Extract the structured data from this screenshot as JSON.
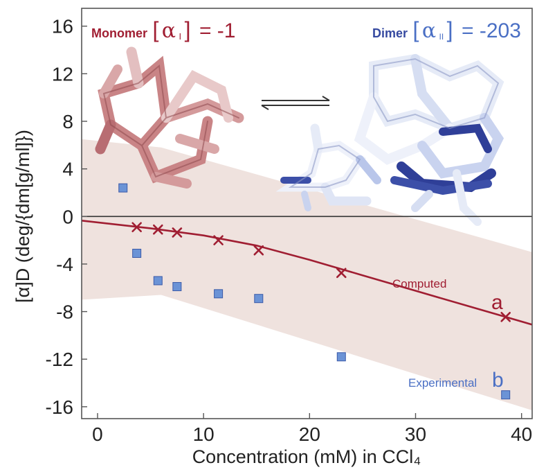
{
  "chart_data": {
    "type": "line",
    "xlabel": "Concentration (mM) in CCl₄",
    "ylabel": "[α]D (deg/{dm[g/ml]})",
    "xlim": [
      -1.5,
      41
    ],
    "ylim": [
      -17,
      17.5
    ],
    "xticks": [
      0,
      10,
      20,
      30,
      40
    ],
    "yticks": [
      16,
      12,
      8,
      4,
      0,
      -4,
      -8,
      -12,
      -16
    ],
    "xtick_labels": [
      "0",
      "10",
      "20",
      "30",
      "40"
    ],
    "ytick_labels": [
      "16",
      "12",
      "8",
      "4",
      "0",
      "-4",
      "-8",
      "-12",
      "-16"
    ],
    "grid": false,
    "zero_line": true,
    "band": {
      "x": [
        -1.5,
        6,
        41
      ],
      "upper": [
        6.5,
        5.8,
        -3.0
      ],
      "lower": [
        -7.0,
        -6.6,
        -16.3
      ],
      "color": "#efe2de"
    },
    "series": [
      {
        "name": "Computed",
        "label": "a",
        "color": "#a01e32",
        "marker": "x",
        "fit_x": [
          -1.5,
          5,
          10,
          15,
          20,
          25,
          30,
          35,
          38.5,
          41
        ],
        "fit_y": [
          -0.35,
          -1.0,
          -1.6,
          -2.45,
          -3.65,
          -4.95,
          -6.25,
          -7.55,
          -8.45,
          -9.1
        ],
        "x": [
          3.7,
          5.7,
          7.5,
          11.4,
          15.2,
          23.0,
          38.5
        ],
        "y": [
          -0.9,
          -1.1,
          -1.35,
          -2.0,
          -2.85,
          -4.75,
          -8.45
        ]
      },
      {
        "name": "Experimental",
        "label": "b",
        "color": "#6b93d6",
        "marker": "square",
        "x": [
          2.4,
          3.7,
          5.7,
          7.5,
          11.4,
          15.2,
          23.0,
          38.5
        ],
        "y": [
          2.4,
          -3.1,
          -5.4,
          -5.9,
          -6.5,
          -6.9,
          -11.8,
          -15.0
        ]
      }
    ],
    "annotations": {
      "monomer_word": "Monomer",
      "monomer_alpha": "α",
      "monomer_sub": "I",
      "monomer_value": "= -1",
      "dimer_word": "Dimer",
      "dimer_alpha": "α",
      "dimer_sub": "II",
      "dimer_value": "= -203",
      "computed_label": "Computed",
      "computed_letter": "a",
      "experimental_label": "Experimental",
      "experimental_letter": "b"
    },
    "colors": {
      "monomer": "#a01e32",
      "dimer": "#3549a0",
      "dimer_value": "#4a6fc4",
      "experimental_text": "#4a6fc4"
    }
  }
}
